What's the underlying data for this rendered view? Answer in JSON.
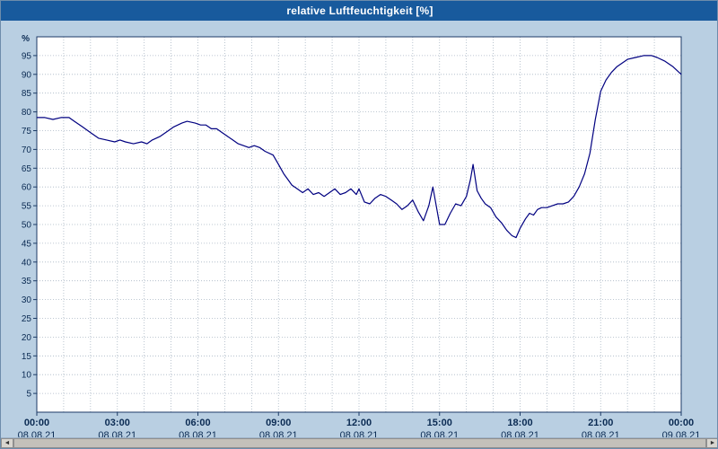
{
  "window": {
    "title": "relative Luftfeuchtigkeit [%]"
  },
  "colors": {
    "titlebar": "#185a9d",
    "line": "#000080",
    "plot_background": "#ffffff",
    "frame_background": "#b9cfe2",
    "grid": "#a9b6c4",
    "axis": "#1c3a66"
  },
  "scrollbar": {
    "left_arrow_icon": "◄",
    "right_arrow_icon": "►"
  },
  "chart_data": {
    "type": "line",
    "title": "relative Luftfeuchtigkeit [%]",
    "ylabel": "%",
    "xlabel": "",
    "ylim": [
      0,
      100
    ],
    "xlim": [
      0,
      24
    ],
    "grid": true,
    "legend": "none",
    "y_ticks": [
      5,
      10,
      15,
      20,
      25,
      30,
      35,
      40,
      45,
      50,
      55,
      60,
      65,
      70,
      75,
      80,
      85,
      90,
      95
    ],
    "x_ticks": [
      {
        "hour": 0,
        "time": "00:00",
        "date": "08.08.21"
      },
      {
        "hour": 3,
        "time": "03:00",
        "date": "08.08.21"
      },
      {
        "hour": 6,
        "time": "06:00",
        "date": "08.08.21"
      },
      {
        "hour": 9,
        "time": "09:00",
        "date": "08.08.21"
      },
      {
        "hour": 12,
        "time": "12:00",
        "date": "08.08.21"
      },
      {
        "hour": 15,
        "time": "15:00",
        "date": "08.08.21"
      },
      {
        "hour": 18,
        "time": "18:00",
        "date": "08.08.21"
      },
      {
        "hour": 21,
        "time": "21:00",
        "date": "08.08.21"
      },
      {
        "hour": 24,
        "time": "00:00",
        "date": "09.08.21"
      }
    ],
    "x": [
      0.0,
      0.3,
      0.6,
      0.9,
      1.2,
      1.4,
      1.7,
      2.0,
      2.3,
      2.6,
      2.9,
      3.1,
      3.3,
      3.6,
      3.9,
      4.1,
      4.3,
      4.6,
      4.9,
      5.1,
      5.4,
      5.6,
      5.9,
      6.1,
      6.3,
      6.5,
      6.7,
      6.9,
      7.1,
      7.3,
      7.5,
      7.7,
      7.9,
      8.1,
      8.3,
      8.5,
      8.8,
      9.0,
      9.2,
      9.4,
      9.5,
      9.7,
      9.9,
      10.1,
      10.3,
      10.5,
      10.7,
      10.9,
      11.1,
      11.3,
      11.5,
      11.7,
      11.9,
      12.0,
      12.2,
      12.4,
      12.6,
      12.8,
      13.0,
      13.2,
      13.4,
      13.6,
      13.8,
      14.0,
      14.2,
      14.4,
      14.6,
      14.75,
      14.9,
      15.0,
      15.2,
      15.4,
      15.6,
      15.8,
      16.0,
      16.15,
      16.25,
      16.4,
      16.55,
      16.7,
      16.9,
      17.1,
      17.3,
      17.5,
      17.7,
      17.85,
      18.0,
      18.2,
      18.35,
      18.5,
      18.65,
      18.8,
      19.0,
      19.2,
      19.4,
      19.6,
      19.8,
      20.0,
      20.2,
      20.4,
      20.6,
      20.8,
      21.0,
      21.2,
      21.4,
      21.6,
      21.8,
      22.0,
      22.3,
      22.6,
      22.9,
      23.1,
      23.4,
      23.7,
      24.0
    ],
    "y": [
      78.5,
      78.5,
      78.0,
      78.5,
      78.5,
      77.5,
      76.0,
      74.5,
      73.0,
      72.5,
      72.0,
      72.5,
      72.0,
      71.5,
      72.0,
      71.5,
      72.5,
      73.5,
      75.0,
      76.0,
      77.0,
      77.5,
      77.0,
      76.5,
      76.5,
      75.5,
      75.5,
      74.5,
      73.5,
      72.5,
      71.5,
      71.0,
      70.5,
      71.0,
      70.5,
      69.5,
      68.5,
      66.0,
      63.5,
      61.5,
      60.5,
      59.5,
      58.5,
      59.5,
      58.0,
      58.5,
      57.5,
      58.5,
      59.5,
      58.0,
      58.5,
      59.5,
      58.0,
      59.5,
      56.0,
      55.5,
      57.0,
      58.0,
      57.5,
      56.5,
      55.5,
      54.0,
      55.0,
      56.5,
      53.5,
      51.0,
      55.0,
      60.0,
      54.0,
      50.0,
      50.0,
      53.0,
      55.5,
      55.0,
      57.5,
      62.0,
      66.0,
      59.0,
      57.0,
      55.5,
      54.5,
      52.0,
      50.5,
      48.5,
      47.0,
      46.5,
      49.0,
      51.5,
      53.0,
      52.5,
      54.0,
      54.5,
      54.5,
      55.0,
      55.5,
      55.5,
      56.0,
      57.5,
      60.0,
      63.5,
      69.0,
      78.0,
      85.5,
      88.5,
      90.5,
      92.0,
      93.0,
      94.0,
      94.5,
      95.0,
      95.0,
      94.5,
      93.5,
      92.0,
      90.0
    ]
  }
}
